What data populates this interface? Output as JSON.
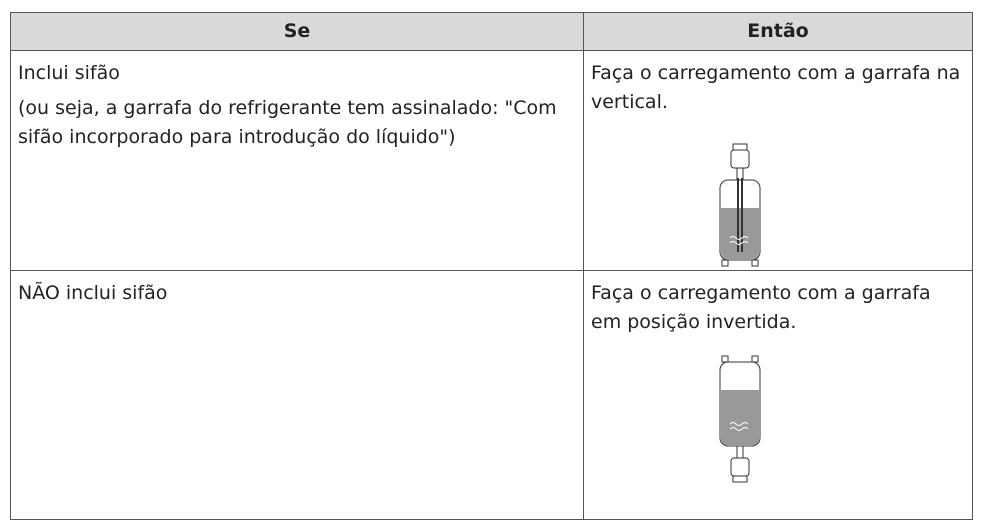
{
  "table": {
    "header": [
      "Se",
      "Então"
    ],
    "rows": [
      {
        "condition": "Inclui sifão",
        "note": "(ou seja, a garrafa do refrigerante tem assinalado: \"Com sifão incorporado para introdução do líquido\")",
        "action": "Faça o carregamento com a garrafa na vertical."
      },
      {
        "condition": "NÃO inclui sifão",
        "action": "Faça o carregamento com a garrafa em posição invertida."
      }
    ]
  }
}
